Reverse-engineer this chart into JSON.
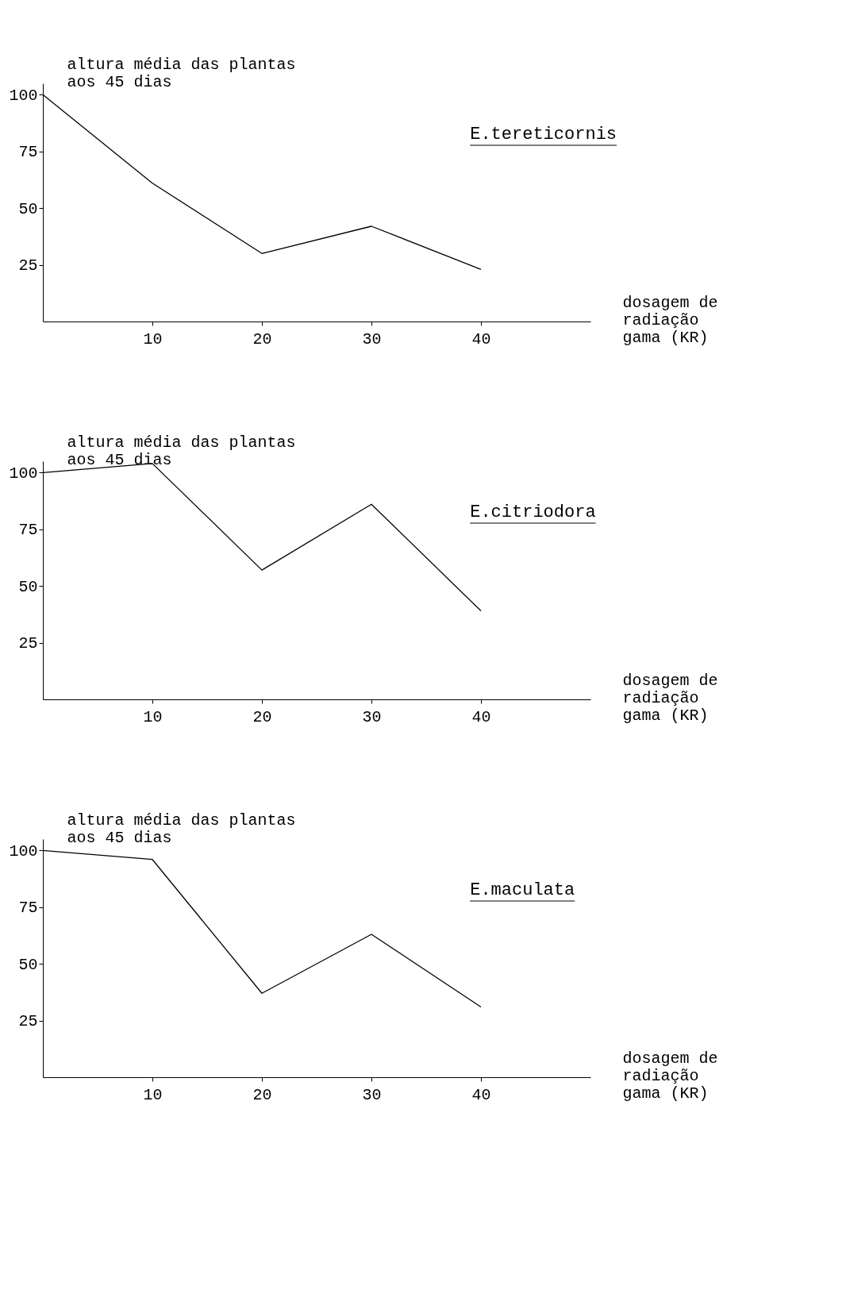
{
  "chart_data": [
    {
      "type": "line",
      "xlabel": "dosagem de radiação gama (KR)",
      "ylabel": "altura média das plantas aos 45 dias",
      "x": [
        0,
        10,
        20,
        30,
        40
      ],
      "series": [
        {
          "name": "E.tereticornis",
          "color": "#000000",
          "values": [
            100,
            61,
            30,
            42,
            23
          ]
        }
      ],
      "xlim": [
        0,
        50
      ],
      "ylim": [
        0,
        105
      ],
      "xticks": [
        10,
        20,
        30,
        40
      ],
      "yticks": [
        25,
        50,
        75,
        100
      ],
      "grid": false
    },
    {
      "type": "line",
      "xlabel": "dosagem de radiação gama (KR)",
      "ylabel": "altura média das plantas aos 45 dias",
      "x": [
        0,
        10,
        20,
        30,
        40
      ],
      "series": [
        {
          "name": "E.citriodora",
          "color": "#000000",
          "values": [
            100,
            104,
            57,
            86,
            39
          ]
        }
      ],
      "xlim": [
        0,
        50
      ],
      "ylim": [
        0,
        105
      ],
      "xticks": [
        10,
        20,
        30,
        40
      ],
      "yticks": [
        25,
        50,
        75,
        100
      ],
      "grid": false
    },
    {
      "type": "line",
      "xlabel": "dosagem de radiação gama (KR)",
      "ylabel": "altura média das plantas aos 45 dias",
      "x": [
        0,
        10,
        20,
        30,
        40
      ],
      "series": [
        {
          "name": "E.maculata",
          "color": "#000000",
          "values": [
            100,
            96,
            37,
            63,
            31
          ]
        }
      ],
      "xlim": [
        0,
        50
      ],
      "ylim": [
        0,
        105
      ],
      "xticks": [
        10,
        20,
        30,
        40
      ],
      "yticks": [
        25,
        50,
        75,
        100
      ],
      "grid": false
    }
  ]
}
